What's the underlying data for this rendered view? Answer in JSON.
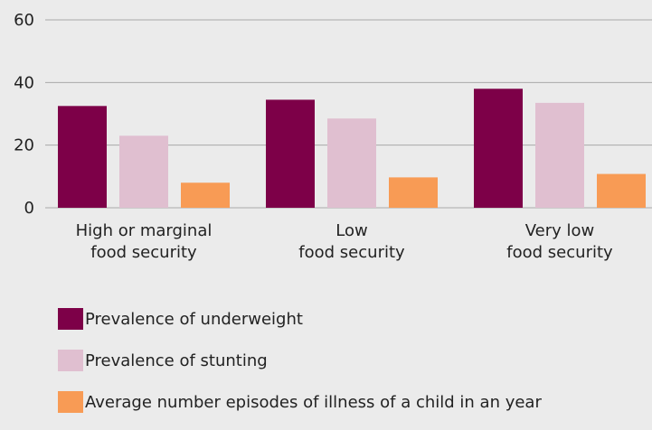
{
  "chart_data": {
    "type": "bar",
    "title": "",
    "xlabel": "",
    "ylabel": "",
    "ylim": [
      0,
      60
    ],
    "yticks": [
      0,
      20,
      40,
      60
    ],
    "grid": true,
    "legend_position": "bottom",
    "categories": [
      [
        "High or marginal",
        "food security"
      ],
      [
        "Low",
        "food security"
      ],
      [
        "Very low",
        "food security"
      ]
    ],
    "series": [
      {
        "name": "Prevalence of underweight",
        "color": "#7d0048",
        "values": [
          32.5,
          34.5,
          38
        ]
      },
      {
        "name": "Prevalence of stunting",
        "color": "#e0bfd0",
        "values": [
          23,
          28.5,
          33.5
        ]
      },
      {
        "name": "Average number episodes of illness of a child in an year",
        "color": "#f89b55",
        "values": [
          8,
          9.7,
          10.8
        ]
      }
    ]
  },
  "legend": {
    "items": [
      {
        "label": "Prevalence of underweight",
        "color": "#7d0048"
      },
      {
        "label": "Prevalence of stunting",
        "color": "#e0bfd0"
      },
      {
        "label": "Average number episodes of illness of a child in an year",
        "color": "#f89b55"
      }
    ]
  },
  "colors": {
    "background": "#ebebeb",
    "gridline": "#a9a9a9",
    "text": "#222222"
  }
}
